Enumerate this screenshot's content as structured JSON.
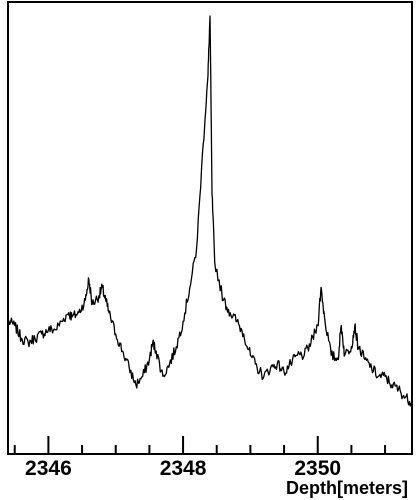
{
  "chart_data": {
    "type": "line",
    "title": "",
    "xlabel": "Depth[meters]",
    "ylabel": "",
    "xlim": [
      2345.4,
      2351.4
    ],
    "ylim": [
      0,
      1
    ],
    "y_tick_labels": false,
    "grid": false,
    "legend": "none",
    "x_ticks": [
      2346,
      2348,
      2350
    ],
    "x_tick_labels": [
      "2346",
      "2348",
      "2350"
    ],
    "x_minor_step": 0.5,
    "line_color": "#000000",
    "series": [
      {
        "name": "",
        "points": [
          [
            2345.4,
            0.28
          ],
          [
            2345.5,
            0.27
          ],
          [
            2345.6,
            0.24
          ],
          [
            2345.7,
            0.23
          ],
          [
            2345.8,
            0.24
          ],
          [
            2345.9,
            0.25
          ],
          [
            2346.0,
            0.26
          ],
          [
            2346.1,
            0.26
          ],
          [
            2346.2,
            0.28
          ],
          [
            2346.3,
            0.3
          ],
          [
            2346.35,
            0.29
          ],
          [
            2346.45,
            0.3
          ],
          [
            2346.55,
            0.33
          ],
          [
            2346.6,
            0.38
          ],
          [
            2346.65,
            0.32
          ],
          [
            2346.75,
            0.34
          ],
          [
            2346.8,
            0.36
          ],
          [
            2346.85,
            0.33
          ],
          [
            2346.9,
            0.3
          ],
          [
            2347.0,
            0.25
          ],
          [
            2347.1,
            0.21
          ],
          [
            2347.2,
            0.17
          ],
          [
            2347.3,
            0.13
          ],
          [
            2347.4,
            0.15
          ],
          [
            2347.5,
            0.19
          ],
          [
            2347.55,
            0.23
          ],
          [
            2347.6,
            0.21
          ],
          [
            2347.7,
            0.15
          ],
          [
            2347.8,
            0.18
          ],
          [
            2347.9,
            0.22
          ],
          [
            2348.0,
            0.28
          ],
          [
            2348.1,
            0.36
          ],
          [
            2348.2,
            0.45
          ],
          [
            2348.3,
            0.7
          ],
          [
            2348.37,
            0.86
          ],
          [
            2348.4,
            1.0
          ],
          [
            2348.43,
            0.58
          ],
          [
            2348.47,
            0.42
          ],
          [
            2348.6,
            0.33
          ],
          [
            2348.7,
            0.3
          ],
          [
            2348.8,
            0.28
          ],
          [
            2348.9,
            0.25
          ],
          [
            2349.0,
            0.2
          ],
          [
            2349.1,
            0.17
          ],
          [
            2349.2,
            0.15
          ],
          [
            2349.3,
            0.17
          ],
          [
            2349.4,
            0.18
          ],
          [
            2349.5,
            0.16
          ],
          [
            2349.6,
            0.18
          ],
          [
            2349.7,
            0.2
          ],
          [
            2349.8,
            0.2
          ],
          [
            2349.9,
            0.23
          ],
          [
            2350.0,
            0.27
          ],
          [
            2350.05,
            0.36
          ],
          [
            2350.1,
            0.29
          ],
          [
            2350.2,
            0.2
          ],
          [
            2350.3,
            0.19
          ],
          [
            2350.35,
            0.27
          ],
          [
            2350.4,
            0.2
          ],
          [
            2350.5,
            0.22
          ],
          [
            2350.55,
            0.27
          ],
          [
            2350.6,
            0.22
          ],
          [
            2350.7,
            0.19
          ],
          [
            2350.8,
            0.17
          ],
          [
            2350.9,
            0.15
          ],
          [
            2351.0,
            0.15
          ],
          [
            2351.1,
            0.13
          ],
          [
            2351.2,
            0.12
          ],
          [
            2351.3,
            0.1
          ],
          [
            2351.4,
            0.09
          ]
        ]
      }
    ]
  }
}
